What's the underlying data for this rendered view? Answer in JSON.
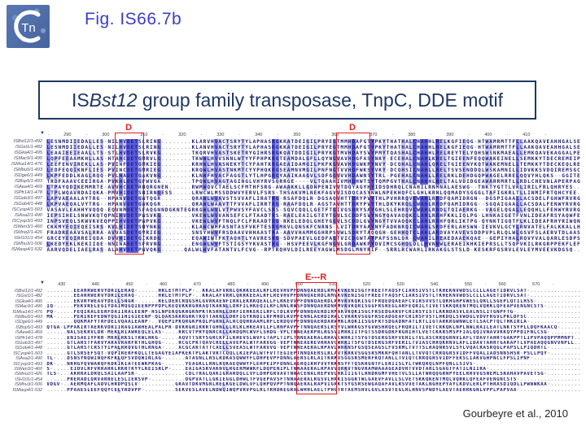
{
  "page": {
    "fig_label": "Fig. IS66.7b",
    "logo_text": "Tn",
    "citation": "Gourbeyre et al., 2010"
  },
  "title": {
    "prefix": "IS",
    "italic": "Bst12",
    "suffix": " group family transposase, TnpC, DDE motif"
  },
  "colors": {
    "accent_red": "#e02020",
    "navy": "#1f3864",
    "fig_blue": "#3b3bc8",
    "cons_dark": "#5c5ce0",
    "cons_mid": "#8a8aec",
    "cons_light": "#cdcdf7",
    "residue": "#1b1b70",
    "gap": "#9a9aa8"
  },
  "alignment": {
    "blocks": [
      {
        "start": 285,
        "ncols": 140,
        "ruler_from": 290,
        "ruler_to": 410,
        "annotations": [
          {
            "label": "D",
            "col_start": 18,
            "col_end": 24
          },
          {
            "label": "D",
            "col_start": 76,
            "col_end": 83
          }
        ],
        "rows": [
          {
            "name": "ISBst12/1-492",
            "seq": "LESNMDIIEDALLES-NILHVDETSLRING........KLARVHVACTSRYTYLAPHASRGKKATDEIGILPRYEGTMMHDAFGTYPKYTHATHALCHAHHLRELKGFIEQG-HTWAMRMTTFLLAAKQAVEAHHGALSE"
          },
          {
            "name": "ISGst1/1-482",
            "seq": "LESNMDIIEDALLES-NILHVDETSLRING........KLANVHVACTSRYTYLAPHASRGKKATDEIGILPRYEGTMMHDAFGTYPKYTHATHALCHAHHLRELKGFIEQG-HTWAMRMTTFLLAAKQAVEAHHGALSE"
          },
          {
            "name": "ISGka4/1-495",
            "seq": "LEAAIEEIEAALLTS-STLHVDETSLRVKG........TKQRVHVASTSKETRYGIHRSRGKQATDDIGILPRYKGTMVHDAYSVYPMYTQASHALCHAHHLRELREYTELYQHSWSNKMAEALLEMKQAVEKAGGALPE"
          },
          {
            "name": "ISMac9/1-495",
            "seq": "LQPFEEAAMKHLLAS-HTAHCDETGMRVLG........TKWWLHVVSNNLWTYYFPHPKRGTEAMDALGFLLQYNGVAVHDGFASYNKY-ECEHALCNAHLKRELTGIEENFEQQWAKEINELLSEMKKYTDECREMEIP"
          },
          {
            "name": "ISMsa14/1-476",
            "seq": "LEEFENVIREKLLAS-PVINFDETGMKIEG........KRHWLHVASNEKYTCYFAHTKRGAEAIDAMGILPKFKGVAVHDGWKPYNVY-DCQHALCNAHLQRELTGIEENYKQTWAKEMNELLTEMKKYTDECKEQLRE"
          },
          {
            "name": "ISMbu5/1-493",
            "seq": "LEDFEQQIKNFLIES-PVINCDETGMRIEG........KRQWLHVASTNKMTCYYPHQKRGSEAMNVMGILPNFNGTVVHDFWKSYVKY-DCQHSICNAHLLRELTSVSENDDQLWSKAMNILLIDVKKSVDQIREMSGC"
          },
          {
            "name": "ISDge6/1-449",
            "seq": "LKPFEDDLKAGLRQQ-PVLHADETGAKVNG........KLNWFHVACFAGGTLYTLHPGRGYAAIKAAGVLSDFGGVVVHDAWNTYTRL-PGEHALCNAHLLRELRKLDEHDGQPWAGELRRELQQVYHLQKS--GGITE"
          },
          {
            "name": "ISBsp5/1-493",
            "seq": "TRDFAAAVCEEIRGA-PVKHLDETGFWVGA........TPQWLHVAGTAGINGLVHYRVSQRRGE----VLTQAAHIVMHDHWTSYTQMPGVTHALCNAHHLRELTALVDIDGEAWARRMRTLLRDLCHEVNLAPERPAG"
          },
          {
            "name": "ISAea4/1-469",
            "seq": "LTPAYQDIKEMMRTE-AVVHCDETRHQRGNEN......RWMWQVCTAELSCFMTHFSRG-AWAAKKLLGDNPENIVVTDQYAGYHYIDSDHRQLCNAHILRNMNALAESWG--TNKTYGTTLVRLIRILFRLQHRYES"
          },
          {
            "name": "ISPfr14/1-478",
            "seq": "LTPLWQAVRDAIQKA-PMVHIDETSHIRNGESS.....LRWCWLMSSDDWVYERVLFSRS-THSAKVMLNEKFAGVVISDQCASYNWLNPEKHQFCLGHLKRNLQQMADYSGGGLTAFIGKRLTLLINMIFRTQHCYEE"
          },
          {
            "name": "ISGob3/1-497",
            "seq": "LAPVAEAALAYTRG--HPANVDETGWTQGR........QRAWLWVAVSTSVVAFLIRATRG-RSAFDQLR-DGSAQVHTTDRYPVYTHLPVHRRQVCWAHLRRDFQAMIDRGN--DGSPIGAALLACSDELFGHWFRVRG"
          },
          {
            "name": "ISGob4/1-448",
            "seq": "LKPVAEQALVYTRG--HPANVDETGWKQGR........QRAWLWAAVTTFVVAFLIRRTRG-RAAFDQLR-AGSTAVHTTDRYPVYTHLDKYKRQLCWAHLRRDFQAMIDRGG--SGQAIGAALLACSDALFENWYRVRG"
          },
          {
            "name": "ISCysp4/1-503",
            "seq": "VASAVLEAHHYVQQQ-EQVNMDETSFAQGNNDGKNTEGRKGWLWVLVTPWVSYFAVCLSRS-SQVCQQLLGETFTGIVGSDRYSAYGHLSLEHRQVCWAHLRRDLTQIAERKG--VAGELQGALLEQQHLLFEHWYRVRG"
          },
          {
            "name": "ISAsa2/1-490",
            "seq": "IEPSIHELSNWVKQTQPNIHVDETPWSVKG........VKEWLWVVANSEFCLFTAADTRS-RAELEAILGTEYTGVLSCDDFSVYNGYQAVAQQKCLAHLRRHFKKLIQLPG-LHNKAIGETFVNLIDEAFRSYAQWFE"
          },
          {
            "name": "ISCysp3/1-493",
            "seq": "INPSVEQLSKWVKVEQPPIHVDETPWPVKG........VKEWLWVFTNQLFCLFRAADTRG-RKELEDQLGHEYGGVLSCDDLGVYNGYTVVAQQKCLAHLRRHFQRLIKTPG-QYNKTIGQTFLKLIDEAFRHYRIWQN"
          },
          {
            "name": "ISWen3/1-460",
            "seq": "CKKMYEQIEQEISRS-KVLHIDETSHYNKG........KLAWCWMFASNTASFVKFTESRGMKVLQNSKFCNRNS-LVITDRYAAYNYFADKNRQICWAHLSRDFERLAHSWN-IEVKVLGCYLRNVATELFALKKALLH"
          },
          {
            "name": "ISMno2/1-426",
            "seq": "FRADREAAVSALRRA-AVVASDETGVRIEG........SNSYHWVFRSDAAVVHHAASTRA-AAVVHAMMGGHRPSVWLSDRYTAQQGH-GEHHQTCLAHLARDVAYAVEVSDDPVPLRLQLWLGSVFSLAERVTDLAAS"
          },
          {
            "name": "ISH101/1-454",
            "seq": "GRCEYEQIRREIQDA-DVVHIDETGIKRDG........EQAWIWTFKTAQHTLYAVRESRG-SDVPAEVLGEDFAGTVICDGWTAYPAFSSNLQR-CWAHILREAEDAAEKQAE--GEPIYHALRQVYVALQARLESDPS"
          },
          {
            "name": "ISMhu3/1-506",
            "seq": "LKEDYEKLKEKIIQE-NNINADETSFRVNG........ENGWLWVFTSTIGSYYKVASTRG--HSVPEEVLKGFNGVLGRDAWKPYDVIMCSGHQLDLLHVNRWLERAEIKHKIEPRSLLTSQPVKILRKGRPPEKFLEF"
          },
          {
            "name": "ISMasp4/1-532",
            "seq": "AARVQDELIAELRAS-ALAHVDETPWVQKG......QALWLWVFATANTVLFCVG--RPTRQHVLDILREEYAGWLMSDGLMNYRIF--SRRLRCWAHLIRKAKGLSTSLD-KESKRFGSRVLEVLEYMVEEVKDGSQ"
          }
        ]
      },
      {
        "start": 426,
        "ncols": 158,
        "ruler_from": 430,
        "ruler_to": 570,
        "annotations": [
          {
            "label": "E---R",
            "col_start": 74,
            "col_end": 84
          }
        ],
        "rows": [
          {
            "name": "ISBst12/1-492",
            "seq": "........EEARRWERVYDRILERAQ-......HRLETMTPLP-..KKALAFVRRLQKRKEEALRFLREVHVPFDNNQAERDLRMVKVKENISGTFREETFAQSFCIARSIVSTLTKHEKNVWDSLCLLLAGETIDRVLSAT-.............."
          },
          {
            "name": "ISGst1/1-482",
            "seq": "........EEARRWERVYDRILERAQ-......HRLETMTPLP-..KKALAFVRRLQKRKEEALRFLREVHVPFDNNQAERDLRMVKVKENISGTFREETFAQSFCIARSIVSTLTKHEKNVWDSLCLLLAGETIDRVLSAT-.............."
          },
          {
            "name": "ISGka4/1-495",
            "seq": "........EKVRYWEAVYDELLSNGR-......RELDERCRQGSHLGVRKAENFIRRLEKRKQEALLFLRKEVVPFDNNQAERDLRMVKVKQKISGTFRQEDQAEAFCVIRSVVSTLQKHGHPVWESLQRLLSGEPLQTILHSS-............"
          },
          {
            "name": "ISMac9/1-495",
            "seq": "IQ-.....PEKVRELEGIYDAIMQGQIEENPPPDPLKEQVKKRGRKAQTKAKNLLDRFILHKEQILRFLNNLRWSFDNNQAERDNRMVKVKQRISGGFRSREGLARFEQRILTIVETSKKQKENTMQLVQRKLQFEAPVENGNCSTS-........"
          },
          {
            "name": "ISMsa14/1-476",
            "seq": "PQ-.....FEQIKALEERFDAIIRALEENP-HSLNPEKQGKRGKNPKTKSRNLLDRFIEHKEKILRFLTDLKVPFDNNQAERDIRMAKVKQKISGCFRSEDGARVFCRIRSYISTLKKNDASVLEALNSLITGNPFTG-................."
          },
          {
            "name": "ISMbu5/1-493",
            "seq": "MK-.....PERIKEFEDWYQGIIHIGIEENP-QLQAKSKKRGRKTKQTTAKNLLDRFIGYKNDILRFMHDLKVPFENNLAERDIRWLCVKRKVSGGFRSEADGEAFCRIRSFVSTLHKDQLSVWDGLVDVFRGVLPKLDFSC.............."
          },
          {
            "name": "ISDge6/1-449",
            "seq": "........QQKMAFYTRFDELVQAALEANP-..VQEPIPKQRGKPKQLPGRNLALRCQQHRAAMLRFLERDQVPFDNNQAERDARWMKLRQKIISGGFRTSDGADNFATLRTLIGTARKRGWNWLETLSACPTQLTHKIRLA-............."
          },
          {
            "name": "ISBsp5/1-493",
            "seq": "QTGA-LPPAKIRTAERKVDRIIRAGIAWHEALPALPR-DVKRGRIRRRTGHNLLLRLKLHKEAVLLFLRNPAVPFTNNQAERSLRSYVLWRKGSYGVWSHRQELFRQRILTIVETCRKQKLNPLNWLRAILEATLNKTSYPLLDQFKAACQ-...."
          },
          {
            "name": "ISAea4/1-469",
            "seq": "......NALSEKRVLDR-MEKLRIAWREQLELAS-....RRCVTPRYQNRCKLLKHDQMCWVFLSHDG-VPLTNNEAERPRLRGSVIMRKIITFGTSSDRGDKFRGRIHTLVETCKKRSMSPFIALQQIVNAVVKKQYPPDIFNLCSG-......."
          },
          {
            "name": "ISPfr14/1-478",
            "seq": "......ENISAEIYFRR-MKRLRKSLTRWLHKG-.....AQVTTSRYSGRCKFILKHEVSLWVFLTAPLTIPLTNNEAERALRHAVCWRKITSYGTDSERGSRFVERILTVLASCRRQGRNVLAFLTDAVTAHRTGAKPPTLIPVPAQQPPMMNPT"
          },
          {
            "name": "ISGob3/1-497",
            "seq": "......GTLARSTFARVYARAVRARFRTHLGHQG-....RCGCPKTQAVCRELLAVEPALWTFARVGG-VEPTNNEAEREVRHAVCWRKITSFGTDSERGSRFVERILTVIASCRRQKRNVLAFLIDAVTAHRTGAKAPTLVPAEAQQGNVVNPLL"
          },
          {
            "name": "ISGob4/1-448",
            "seq": "......GTLARSTCRSTYIPALRRQVGTHLRNGA-....ACGCAKTATTCAELLSVEASLWTFARVVG-VEPTNNEAERALRPAVLWRKNSFGSQSEAGSLFVSRMLTVTTSLRAQNRSVLSYLVQACRASRQGLPAPSLLPIQDRTL-......."
          },
          {
            "name": "ISCysp4/1-503",
            "seq": "......GTLSRSEFSQT-VQPIRERFKQLLTEGAGYEIAPKEKTPLAKTVRTCQQLLKIEPALWTFVTTEGIEPTNNQAERSLRLAVTKRKVSGGSRSMKRFQHTANLLTVVQTCRRQGRSVIDFFVQALIADSNNSHSR-PSLLPQY-......."
          },
          {
            "name": "ISAsa2/1-490",
            "seq": "TL-...DSNSYNQWINQFKFKLQFSVDQWINLAG-......ATAGNLLRSLRDKASQWWYFLDHPEVPFDNNLAERSLRLAITKRKVSGGSRSMERFKQTANLLTVIQTCRRQGRSVIDFFEKSLIAKVGHPNCLFPSLIPNF-............"
          },
          {
            "name": "ISCysp3/1-493",
            "seq": "DK-...NRHGYQVWARQFKDKIKIATEEWKPKAG-......YEAGKLLRNLRQKAEQWWYFLEHPEIPFDNNLAERQIRHYVVYRKNSYFTQSKRGNTFLERIISLYLTWKQRQLNPFQNLLSIVS-.........................."
          },
          {
            "name": "ISWen3/1-460",
            "seq": "S-.....EIDVLRFVRRARKLRKRTKYYLKEISRLP-....EAIGASRVAKNVLRGERMWWKFLDQPENIPLTNNAAERALRPAVVQRKVTNGVRAMWAAAGEADVRTVVDTARLSGAGTFATILNIIRA-....................."
          },
          {
            "name": "ISMno2/1-426",
            "seq": "TLS-...AKRRALDRQLSAILAAPSR-..............CDLTRALQAKIGRARDQLLVFLDHPGRVAVTNNACENALREPVVLRKIIIGTLRNDRGMFVHETVLSLLATWRQQGRNPYEELRRVVGSNEMLSRAHAVPAVETSG-........"
          },
          {
            "name": "ISH101/1-454",
            "seq": "......PRERADLQRVARRELESLIERSVP-..........DGPVATLLGKIEGGLDHWLTFVGEPAVSFTNNAAERALRGSVLHRKISGGRTWLGAEVFAVLLSLVETSKKQKENTMQLVQRKLQFEAFVENGNCSTS-................"
          },
          {
            "name": "ISMhu3/1-506",
            "seq": "VDGV-..AERMQAFLADVLHRDPQSLV-..........GRAVTDKVMGRLRELKGELDWLVFLQHPQVPPTNNQAERALRAPVIGRKTSYGSRSEWGAQAFAVLRSVVETAKLNGHEPYAYLKDVLERLPTHRASDIQDLLPWNWKAA-......."
          },
          {
            "name": "ISMasp4/1-532",
            "seq": "......PPAAESLEEFQQYCELYRDVPP-.........SEKVESLAVELNDWQIWQPVRVPGLRLTRHDKEGRALWHHLAELTPHGTRTAEMSHVLGVLASVTEGLRLHNVSPWDYLAEVTAERRKGNLVPPLPAPVAA-................"
          }
        ]
      }
    ]
  }
}
